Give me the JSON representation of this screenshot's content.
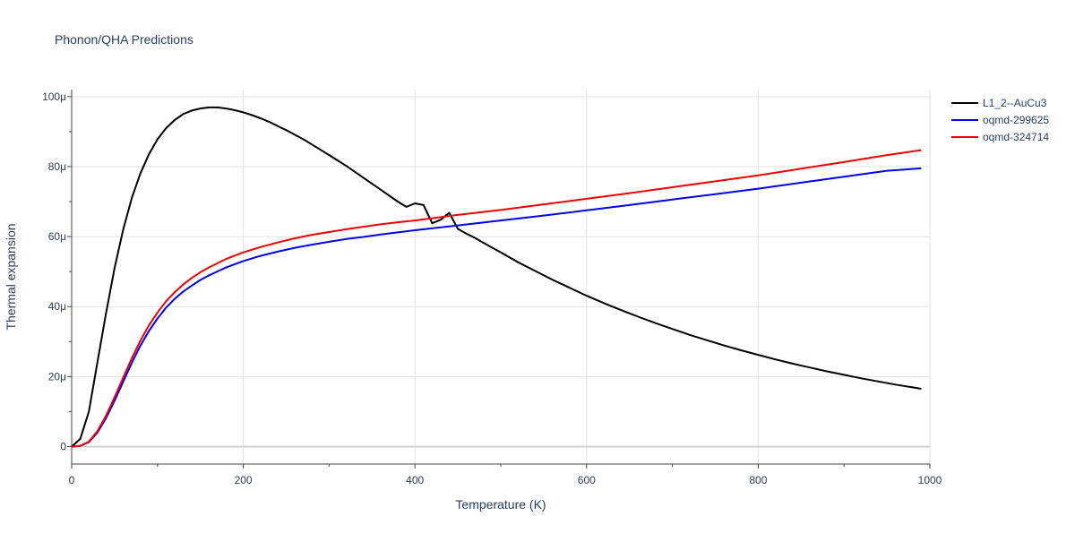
{
  "chart_data": {
    "type": "line",
    "title": "Phonon/QHA Predictions",
    "xlabel": "Temperature (K)",
    "ylabel": "Thermal expansion",
    "xlim": [
      0,
      1000
    ],
    "ylim": [
      -5e-06,
      0.000102
    ],
    "grid": true,
    "legend_position": "right",
    "x_ticks": [
      0,
      200,
      400,
      600,
      800,
      1000
    ],
    "x_tick_labels": [
      "0",
      "200",
      "400",
      "600",
      "800",
      "1000"
    ],
    "y_ticks": [
      0,
      2e-05,
      4e-05,
      6e-05,
      8e-05,
      0.0001
    ],
    "y_tick_labels": [
      "0",
      "20μ",
      "40μ",
      "60μ",
      "80μ",
      "100μ"
    ],
    "series": [
      {
        "name": "L1_2--AuCu3",
        "color": "#000000",
        "x": [
          0,
          10,
          20,
          30,
          40,
          50,
          60,
          70,
          80,
          90,
          100,
          110,
          120,
          130,
          140,
          150,
          160,
          170,
          180,
          190,
          200,
          210,
          220,
          230,
          240,
          250,
          260,
          270,
          280,
          290,
          300,
          320,
          340,
          360,
          380,
          390,
          400,
          410,
          420,
          430,
          440,
          450,
          460,
          470,
          480,
          500,
          520,
          540,
          560,
          580,
          600,
          620,
          640,
          660,
          680,
          700,
          720,
          740,
          760,
          780,
          800,
          820,
          840,
          860,
          880,
          900,
          920,
          940,
          960,
          980,
          990
        ],
        "y": [
          0,
          2.2e-06,
          1e-05,
          2.4e-05,
          3.8e-05,
          5.1e-05,
          6.2e-05,
          7.1e-05,
          7.8e-05,
          8.35e-05,
          8.78e-05,
          9.1e-05,
          9.33e-05,
          9.5e-05,
          9.6e-05,
          9.66e-05,
          9.69e-05,
          9.69e-05,
          9.66e-05,
          9.61e-05,
          9.55e-05,
          9.47e-05,
          9.38e-05,
          9.28e-05,
          9.16e-05,
          9.04e-05,
          8.91e-05,
          8.78e-05,
          8.63e-05,
          8.48e-05,
          8.33e-05,
          8.02e-05,
          7.68e-05,
          7.34e-05,
          7e-05,
          6.85e-05,
          6.95e-05,
          6.9e-05,
          6.38e-05,
          6.48e-05,
          6.68e-05,
          6.22e-05,
          6.08e-05,
          5.96e-05,
          5.82e-05,
          5.55e-05,
          5.27e-05,
          5.02e-05,
          4.77e-05,
          4.54e-05,
          4.31e-05,
          4.1e-05,
          3.9e-05,
          3.71e-05,
          3.53e-05,
          3.36e-05,
          3.19e-05,
          3.04e-05,
          2.89e-05,
          2.75e-05,
          2.62e-05,
          2.49e-05,
          2.37e-05,
          2.26e-05,
          2.15e-05,
          2.05e-05,
          1.95e-05,
          1.86e-05,
          1.77e-05,
          1.69e-05,
          1.65e-05
        ]
      },
      {
        "name": "oqmd-299625",
        "color": "#0000ee",
        "x": [
          0,
          10,
          20,
          30,
          40,
          50,
          60,
          70,
          80,
          90,
          100,
          110,
          120,
          130,
          140,
          150,
          160,
          180,
          200,
          220,
          240,
          260,
          280,
          300,
          320,
          340,
          360,
          380,
          400,
          450,
          500,
          550,
          600,
          650,
          700,
          750,
          800,
          850,
          900,
          950,
          990
        ],
        "y": [
          0,
          2e-07,
          1.3e-06,
          4e-06,
          8.1e-06,
          1.31e-05,
          1.85e-05,
          2.39e-05,
          2.88e-05,
          3.3e-05,
          3.66e-05,
          3.97e-05,
          4.22e-05,
          4.43e-05,
          4.6e-05,
          4.76e-05,
          4.89e-05,
          5.12e-05,
          5.3e-05,
          5.45e-05,
          5.57e-05,
          5.68e-05,
          5.77e-05,
          5.85e-05,
          5.93e-05,
          5.99e-05,
          6.06e-05,
          6.12e-05,
          6.18e-05,
          6.32e-05,
          6.46e-05,
          6.6e-05,
          6.75e-05,
          6.9e-05,
          7.06e-05,
          7.21e-05,
          7.37e-05,
          7.54e-05,
          7.71e-05,
          7.88e-05,
          7.95e-05
        ]
      },
      {
        "name": "oqmd-324714",
        "color": "#ee0000",
        "x": [
          0,
          10,
          20,
          30,
          40,
          50,
          60,
          70,
          80,
          90,
          100,
          110,
          120,
          130,
          140,
          150,
          160,
          180,
          200,
          220,
          240,
          260,
          280,
          300,
          320,
          340,
          360,
          380,
          400,
          450,
          500,
          550,
          600,
          650,
          700,
          750,
          800,
          850,
          900,
          950,
          990
        ],
        "y": [
          0,
          2e-07,
          1.4e-06,
          4.4e-06,
          8.8e-06,
          1.41e-05,
          1.97e-05,
          2.52e-05,
          3.02e-05,
          3.46e-05,
          3.83e-05,
          4.15e-05,
          4.41e-05,
          4.63e-05,
          4.82e-05,
          4.98e-05,
          5.12e-05,
          5.36e-05,
          5.55e-05,
          5.7e-05,
          5.83e-05,
          5.95e-05,
          6.05e-05,
          6.13e-05,
          6.21e-05,
          6.28e-05,
          6.35e-05,
          6.41e-05,
          6.46e-05,
          6.62e-05,
          6.76e-05,
          6.92e-05,
          7.08e-05,
          7.24e-05,
          7.41e-05,
          7.58e-05,
          7.75e-05,
          7.94e-05,
          8.13e-05,
          8.33e-05,
          8.47e-05
        ]
      }
    ]
  }
}
